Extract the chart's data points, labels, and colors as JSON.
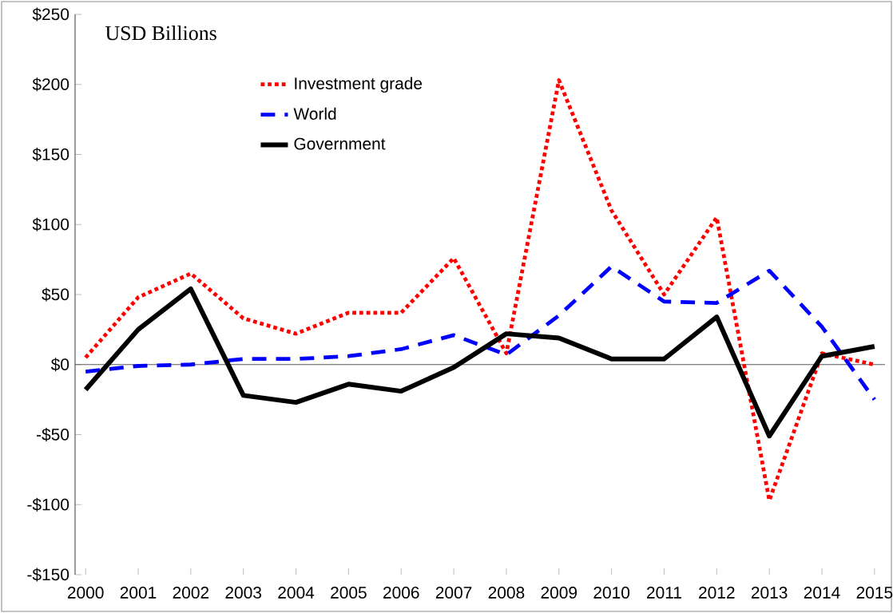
{
  "chart_data": {
    "type": "line",
    "ylabel": "USD Billions",
    "categories": [
      "2000",
      "2001",
      "2002",
      "2003",
      "2004",
      "2005",
      "2006",
      "2007",
      "2008",
      "2009",
      "2010",
      "2011",
      "2012",
      "2013",
      "2014",
      "2015"
    ],
    "series": [
      {
        "name": "Investment grade",
        "color": "#ff0000",
        "line_style": "dotted",
        "values": [
          5,
          48,
          65,
          33,
          22,
          37,
          37,
          76,
          8,
          203,
          110,
          50,
          105,
          -97,
          8,
          0
        ]
      },
      {
        "name": "World",
        "color": "#0000ff",
        "line_style": "dashed",
        "values": [
          -5,
          -1,
          0,
          4,
          4,
          6,
          11,
          21,
          7,
          35,
          70,
          45,
          44,
          67,
          27,
          -25
        ]
      },
      {
        "name": "Government",
        "color": "#000000",
        "line_style": "solid",
        "values": [
          -18,
          25,
          54,
          -22,
          -27,
          -14,
          -19,
          -2,
          22,
          19,
          4,
          4,
          34,
          -51,
          6,
          13
        ]
      }
    ],
    "ylim": [
      -150,
      250
    ],
    "yticks": [
      {
        "value": -150,
        "label": "-$150"
      },
      {
        "value": -100,
        "label": "-$100"
      },
      {
        "value": -50,
        "label": "-$50"
      },
      {
        "value": 0,
        "label": "$0"
      },
      {
        "value": 50,
        "label": "$50"
      },
      {
        "value": 100,
        "label": "$100"
      },
      {
        "value": 150,
        "label": "$150"
      },
      {
        "value": 200,
        "label": "$200"
      },
      {
        "value": 250,
        "label": "$250"
      }
    ],
    "legend": "top left",
    "marker": "none"
  }
}
